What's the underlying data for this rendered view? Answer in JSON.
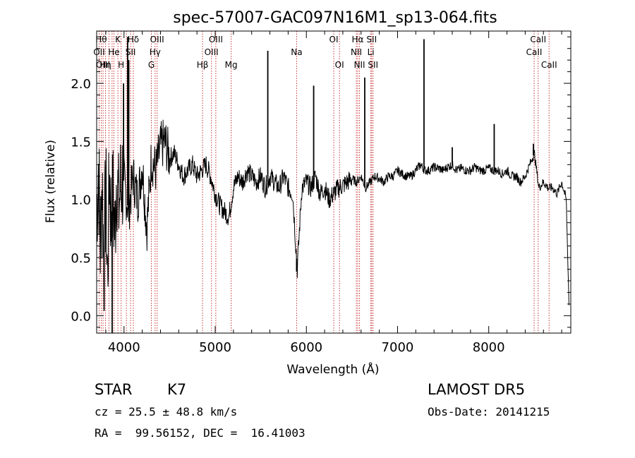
{
  "chart_data": {
    "type": "line",
    "title": "spec-57007-GAC097N16M1_sp13-064.fits",
    "xlabel": "Wavelength (Å)",
    "ylabel": "Flux (relative)",
    "xlim": [
      3700,
      8900
    ],
    "ylim": [
      -0.15,
      2.45
    ],
    "x_ticks": [
      4000,
      5000,
      6000,
      7000,
      8000
    ],
    "y_ticks": [
      0.0,
      0.5,
      1.0,
      1.5,
      2.0
    ],
    "x_tick_labels": [
      "4000",
      "5000",
      "6000",
      "7000",
      "8000"
    ],
    "y_tick_labels": [
      "0.0",
      "0.5",
      "1.0",
      "1.5",
      "2.0"
    ],
    "grid": false,
    "series": [
      {
        "x": [
          3700,
          3720,
          3740,
          3760,
          3780,
          3800,
          3820,
          3840,
          3860,
          3880,
          3900,
          3920,
          3940,
          3960,
          3980,
          4000,
          4050,
          4100,
          4150,
          4200,
          4250,
          4300,
          4350,
          4400,
          4450,
          4500,
          4550,
          4600,
          4650,
          4700,
          4750,
          4800,
          4850,
          4900,
          4950,
          5000,
          5050,
          5100,
          5150,
          5200,
          5250,
          5300,
          5350,
          5400,
          5450,
          5500,
          5550,
          5600,
          5650,
          5700,
          5750,
          5800,
          5850,
          5900,
          5950,
          6000,
          6050,
          6100,
          6150,
          6200,
          6250,
          6300,
          6350,
          6400,
          6450,
          6500,
          6550,
          6600,
          6650,
          6700,
          6750,
          6800,
          6850,
          6900,
          6950,
          7000,
          7050,
          7100,
          7150,
          7200,
          7250,
          7300,
          7350,
          7400,
          7450,
          7500,
          7550,
          7600,
          7650,
          7700,
          7750,
          7800,
          7850,
          7900,
          7950,
          8000,
          8050,
          8100,
          8150,
          8200,
          8250,
          8300,
          8350,
          8400,
          8450,
          8500,
          8550,
          8600,
          8650,
          8700,
          8750,
          8800,
          8850,
          8880
        ],
        "y": [
          0.9,
          1.3,
          0.6,
          1.2,
          0.4,
          1.1,
          0.3,
          1.25,
          0.8,
          1.0,
          0.7,
          1.3,
          0.9,
          1.1,
          1.2,
          1.15,
          0.9,
          1.2,
          1.0,
          1.3,
          0.75,
          1.35,
          1.25,
          1.45,
          1.5,
          1.35,
          1.4,
          1.3,
          1.2,
          1.25,
          1.3,
          1.2,
          1.25,
          1.3,
          1.2,
          1.05,
          0.95,
          0.9,
          0.85,
          1.1,
          1.2,
          1.15,
          1.25,
          1.2,
          1.15,
          1.2,
          1.1,
          1.2,
          1.15,
          1.1,
          1.2,
          1.1,
          1.05,
          0.4,
          1.1,
          1.15,
          1.1,
          1.2,
          1.05,
          1.1,
          1.0,
          1.05,
          1.1,
          1.12,
          1.15,
          1.18,
          1.15,
          1.2,
          1.1,
          1.15,
          1.2,
          1.18,
          1.15,
          1.2,
          1.2,
          1.25,
          1.22,
          1.2,
          1.2,
          1.25,
          1.3,
          1.25,
          1.25,
          1.28,
          1.27,
          1.25,
          1.28,
          1.3,
          1.25,
          1.27,
          1.25,
          1.25,
          1.28,
          1.25,
          1.25,
          1.27,
          1.25,
          1.25,
          1.22,
          1.25,
          1.2,
          1.2,
          1.15,
          1.2,
          1.3,
          1.4,
          1.1,
          1.15,
          1.1,
          1.1,
          1.05,
          1.15,
          1.0,
          0.1
        ]
      }
    ],
    "emission_spikes": [
      {
        "x": 3870,
        "y": -0.15
      },
      {
        "x": 3995,
        "y": 2.0
      },
      {
        "x": 4040,
        "y": 2.4
      },
      {
        "x": 4052,
        "y": 2.2
      },
      {
        "x": 5577,
        "y": 2.28
      },
      {
        "x": 5893,
        "y": 0.38
      },
      {
        "x": 6080,
        "y": 1.98
      },
      {
        "x": 6300,
        "y": 1.1
      },
      {
        "x": 6640,
        "y": 2.05
      },
      {
        "x": 7290,
        "y": 2.38
      },
      {
        "x": 7600,
        "y": 1.45
      },
      {
        "x": 8060,
        "y": 1.65
      },
      {
        "x": 8490,
        "y": 1.48
      }
    ],
    "reference_lines": [
      {
        "x": 3727,
        "label": "OII",
        "row": 1
      },
      {
        "x": 3750,
        "label": "Hθ",
        "row": 0
      },
      {
        "x": 3770,
        "label": "OIII",
        "row": 2
      },
      {
        "x": 3797,
        "label": "Hη",
        "row": 2
      },
      {
        "x": 3835,
        "label": "",
        "row": -1
      },
      {
        "x": 3869,
        "label": "",
        "row": -1
      },
      {
        "x": 3889,
        "label": "He",
        "row": 1
      },
      {
        "x": 3933,
        "label": "K",
        "row": 0
      },
      {
        "x": 3968,
        "label": "H",
        "row": 2
      },
      {
        "x": 4026,
        "label": "",
        "row": -1
      },
      {
        "x": 4072,
        "label": "SII",
        "row": 1
      },
      {
        "x": 4102,
        "label": "Hδ",
        "row": 0
      },
      {
        "x": 4300,
        "label": "G",
        "row": 2
      },
      {
        "x": 4341,
        "label": "Hγ",
        "row": 1
      },
      {
        "x": 4363,
        "label": "OIII",
        "row": 0
      },
      {
        "x": 4861,
        "label": "Hβ",
        "row": 2
      },
      {
        "x": 4959,
        "label": "OIII",
        "row": 1
      },
      {
        "x": 5007,
        "label": "OIII",
        "row": 0
      },
      {
        "x": 5175,
        "label": "Mg",
        "row": 2
      },
      {
        "x": 5893,
        "label": "Na",
        "row": 1
      },
      {
        "x": 6300,
        "label": "OI",
        "row": 0
      },
      {
        "x": 6363,
        "label": "OI",
        "row": 2
      },
      {
        "x": 6548,
        "label": "NII",
        "row": 1
      },
      {
        "x": 6563,
        "label": "Hα",
        "row": 0
      },
      {
        "x": 6583,
        "label": "NII",
        "row": 2
      },
      {
        "x": 6707,
        "label": "Li",
        "row": 1
      },
      {
        "x": 6716,
        "label": "SII",
        "row": 0
      },
      {
        "x": 6731,
        "label": "SII",
        "row": 2
      },
      {
        "x": 8498,
        "label": "CaII",
        "row": 1
      },
      {
        "x": 8542,
        "label": "CaII",
        "row": 0
      },
      {
        "x": 8662,
        "label": "CaII",
        "row": 2
      }
    ]
  },
  "colors": {
    "spectrum": "#000000",
    "reference_line": "#c83232",
    "axes": "#000000",
    "background": "#ffffff"
  },
  "info": {
    "class": "STAR",
    "subclass": "K7",
    "survey": "LAMOST DR5",
    "cz": "cz = 25.5 ± 48.8 km/s",
    "obs_date": "Obs-Date: 20141215",
    "coords": "RA =  99.56152, DEC =  16.41003"
  }
}
